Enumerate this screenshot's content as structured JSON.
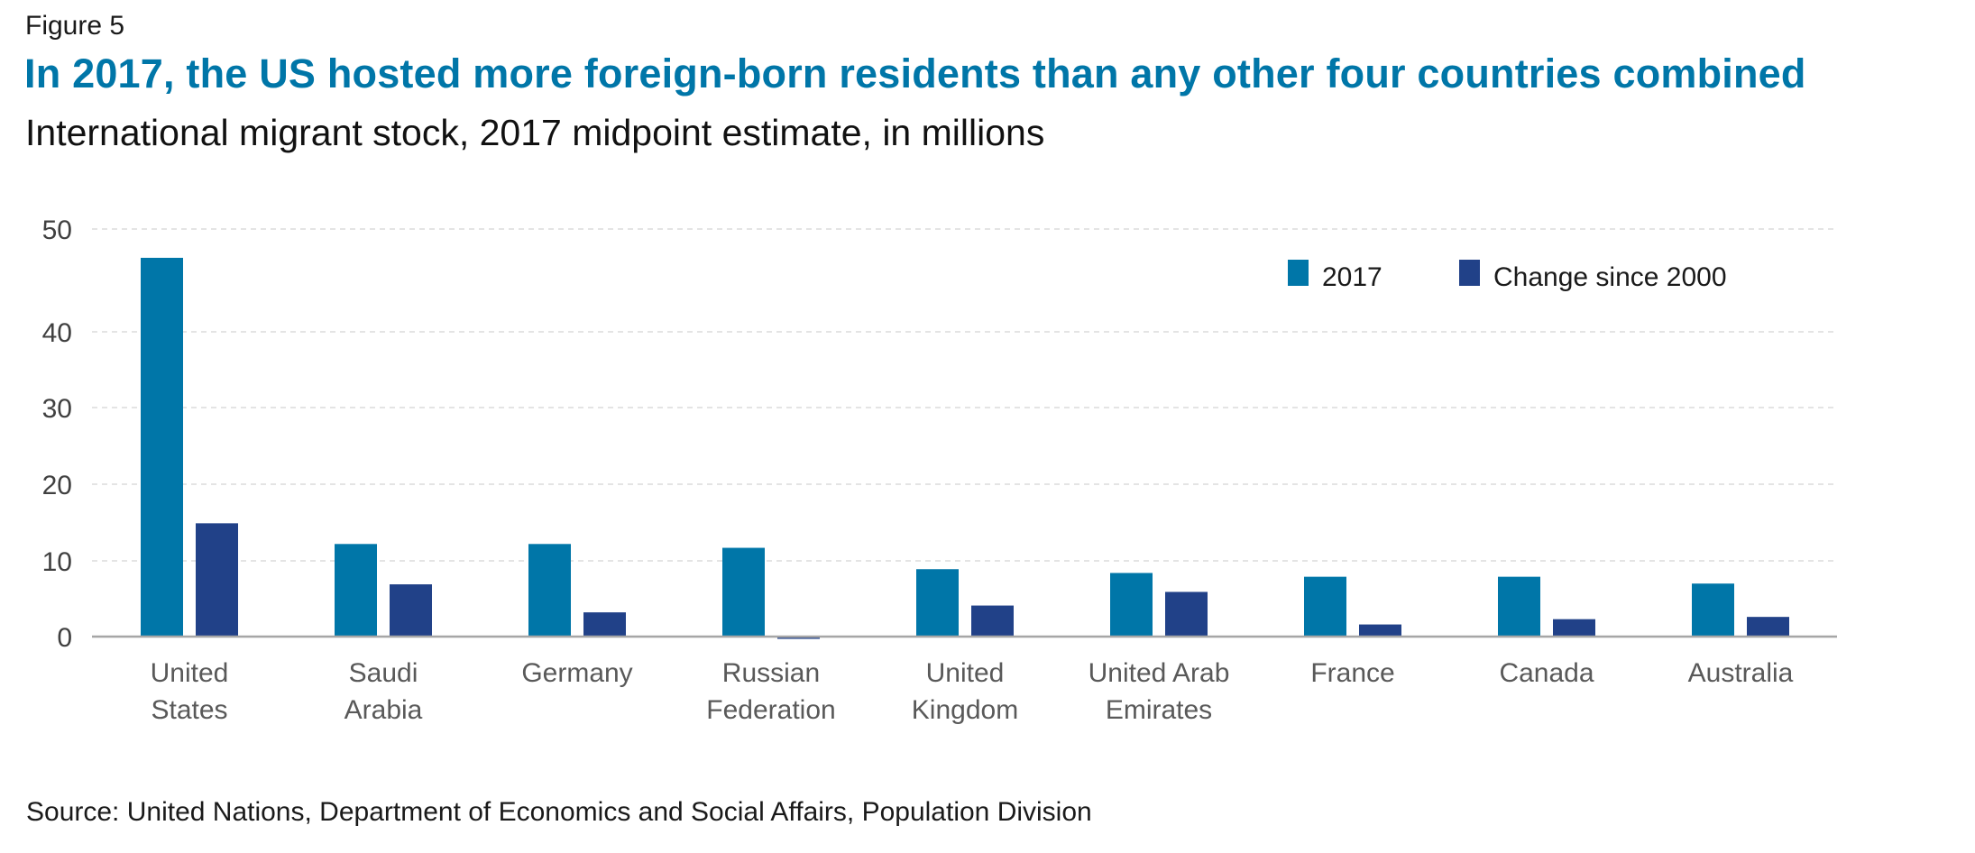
{
  "figure_label": "Figure 5",
  "chart_data": {
    "type": "bar",
    "title": "In 2017, the US hosted more foreign-born residents than any other four countries combined",
    "subtitle": "International migrant stock, 2017 midpoint estimate, in millions",
    "xlabel": "",
    "ylabel": "",
    "ylim": [
      0,
      50
    ],
    "yticks": [
      "0",
      "10",
      "20",
      "30",
      "40",
      "50"
    ],
    "grid": true,
    "legend_position": "top-right",
    "categories": [
      [
        "United",
        "States"
      ],
      [
        "Saudi",
        "Arabia"
      ],
      [
        "Germany"
      ],
      [
        "Russian",
        "Federation"
      ],
      [
        "United",
        "Kingdom"
      ],
      [
        "United Arab",
        "Emirates"
      ],
      [
        "France"
      ],
      [
        "Canada"
      ],
      [
        "Australia"
      ]
    ],
    "series": [
      {
        "name": "2017",
        "color": "#0076a8",
        "values": [
          47.2,
          12.2,
          12.2,
          11.7,
          8.9,
          8.4,
          7.9,
          7.9,
          7.0
        ]
      },
      {
        "name": "Change since 2000",
        "color": "#214188",
        "values": [
          14.9,
          6.9,
          3.2,
          -0.3,
          4.1,
          5.9,
          1.6,
          2.3,
          2.6
        ]
      }
    ],
    "source": "Source: United Nations, Department of Economics and Social Affairs, Population Division"
  }
}
